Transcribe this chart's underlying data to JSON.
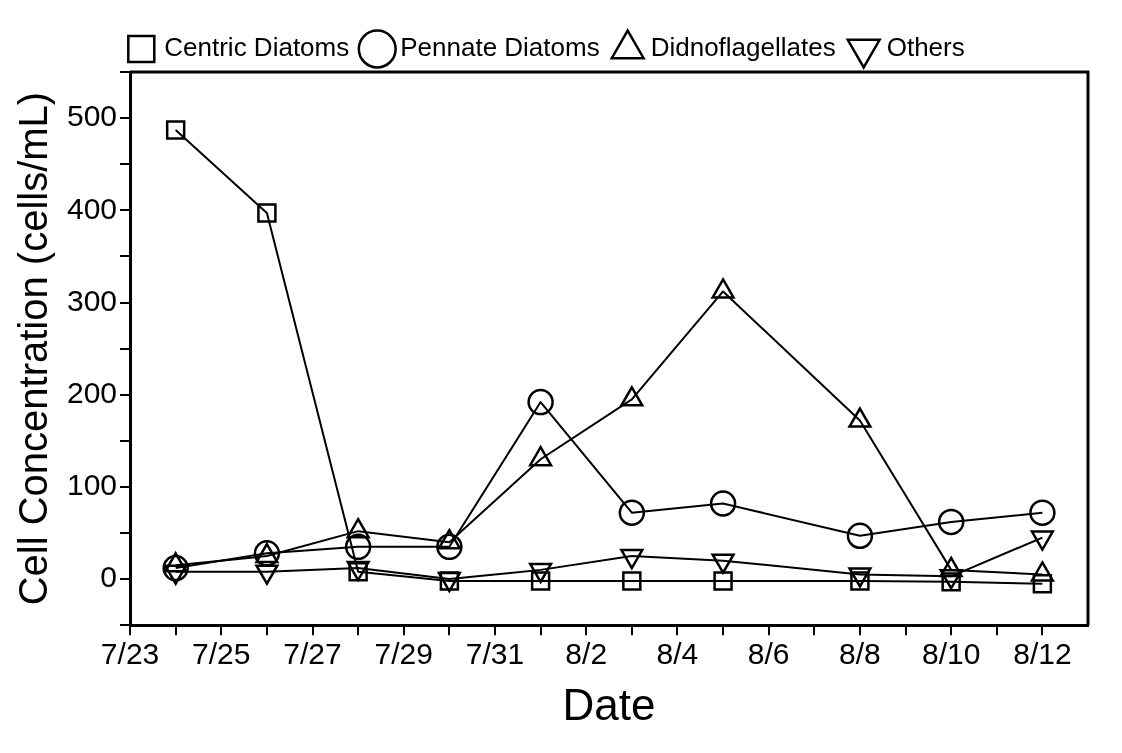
{
  "chart_data": {
    "type": "line",
    "xlabel": "Date",
    "ylabel": "Cell Concentration (cells/mL)",
    "x": [
      "--07-24",
      "--07-26",
      "--07-28",
      "--07-30",
      "--08-01",
      "--08-03",
      "--08-05",
      "--08-08",
      "--08-10",
      "--08-12"
    ],
    "series": [
      {
        "name": "Centric Diatoms",
        "color": "#000000",
        "marker": "square",
        "values": [
          487,
          397,
          8,
          -2,
          -2,
          -2,
          -2,
          -2,
          -3,
          -5
        ]
      },
      {
        "name": "Pennate Diatoms",
        "color": "#000000",
        "marker": "circle",
        "values": [
          12,
          28,
          35,
          35,
          192,
          72,
          82,
          47,
          62,
          72
        ]
      },
      {
        "name": "Didnoflagellates",
        "color": "#000000",
        "marker": "triangle",
        "values": [
          15,
          25,
          52,
          40,
          130,
          195,
          312,
          172,
          10,
          5
        ]
      },
      {
        "name": "Others",
        "color": "#000000",
        "marker": "triangle-down",
        "values": [
          8,
          8,
          12,
          0,
          10,
          25,
          20,
          5,
          3,
          45
        ]
      }
    ],
    "xlim": [
      "--07-23",
      "--08-13"
    ],
    "xticks": [
      {
        "value": "--07-23",
        "label": "7/23"
      },
      {
        "value": "--07-24",
        "label": null
      },
      {
        "value": "--07-25",
        "label": "7/25"
      },
      {
        "value": "--07-26",
        "label": null
      },
      {
        "value": "--07-27",
        "label": "7/27"
      },
      {
        "value": "--07-28",
        "label": null
      },
      {
        "value": "--07-29",
        "label": "7/29"
      },
      {
        "value": "--07-30",
        "label": null
      },
      {
        "value": "--07-31",
        "label": "7/31"
      },
      {
        "value": "--08-01",
        "label": null
      },
      {
        "value": "--08-02",
        "label": "8/2"
      },
      {
        "value": "--08-03",
        "label": null
      },
      {
        "value": "--08-04",
        "label": "8/4"
      },
      {
        "value": "--08-05",
        "label": null
      },
      {
        "value": "--08-06",
        "label": "8/6"
      },
      {
        "value": "--08-07",
        "label": null
      },
      {
        "value": "--08-08",
        "label": "8/8"
      },
      {
        "value": "--08-09",
        "label": null
      },
      {
        "value": "--08-10",
        "label": "8/10"
      },
      {
        "value": "--08-11",
        "label": null
      },
      {
        "value": "--08-12",
        "label": "8/12"
      }
    ],
    "ylim": [
      -50,
      550
    ],
    "yticks": [
      {
        "value": -50,
        "label": null
      },
      0,
      {
        "value": 50,
        "label": null
      },
      100,
      {
        "value": 150,
        "label": null
      },
      200,
      {
        "value": 250,
        "label": null
      },
      300,
      {
        "value": 350,
        "label": null
      },
      400,
      {
        "value": 450,
        "label": null
      },
      500,
      {
        "value": 550,
        "label": null
      }
    ],
    "grid": false,
    "legend": "top",
    "line_style": "solid"
  }
}
